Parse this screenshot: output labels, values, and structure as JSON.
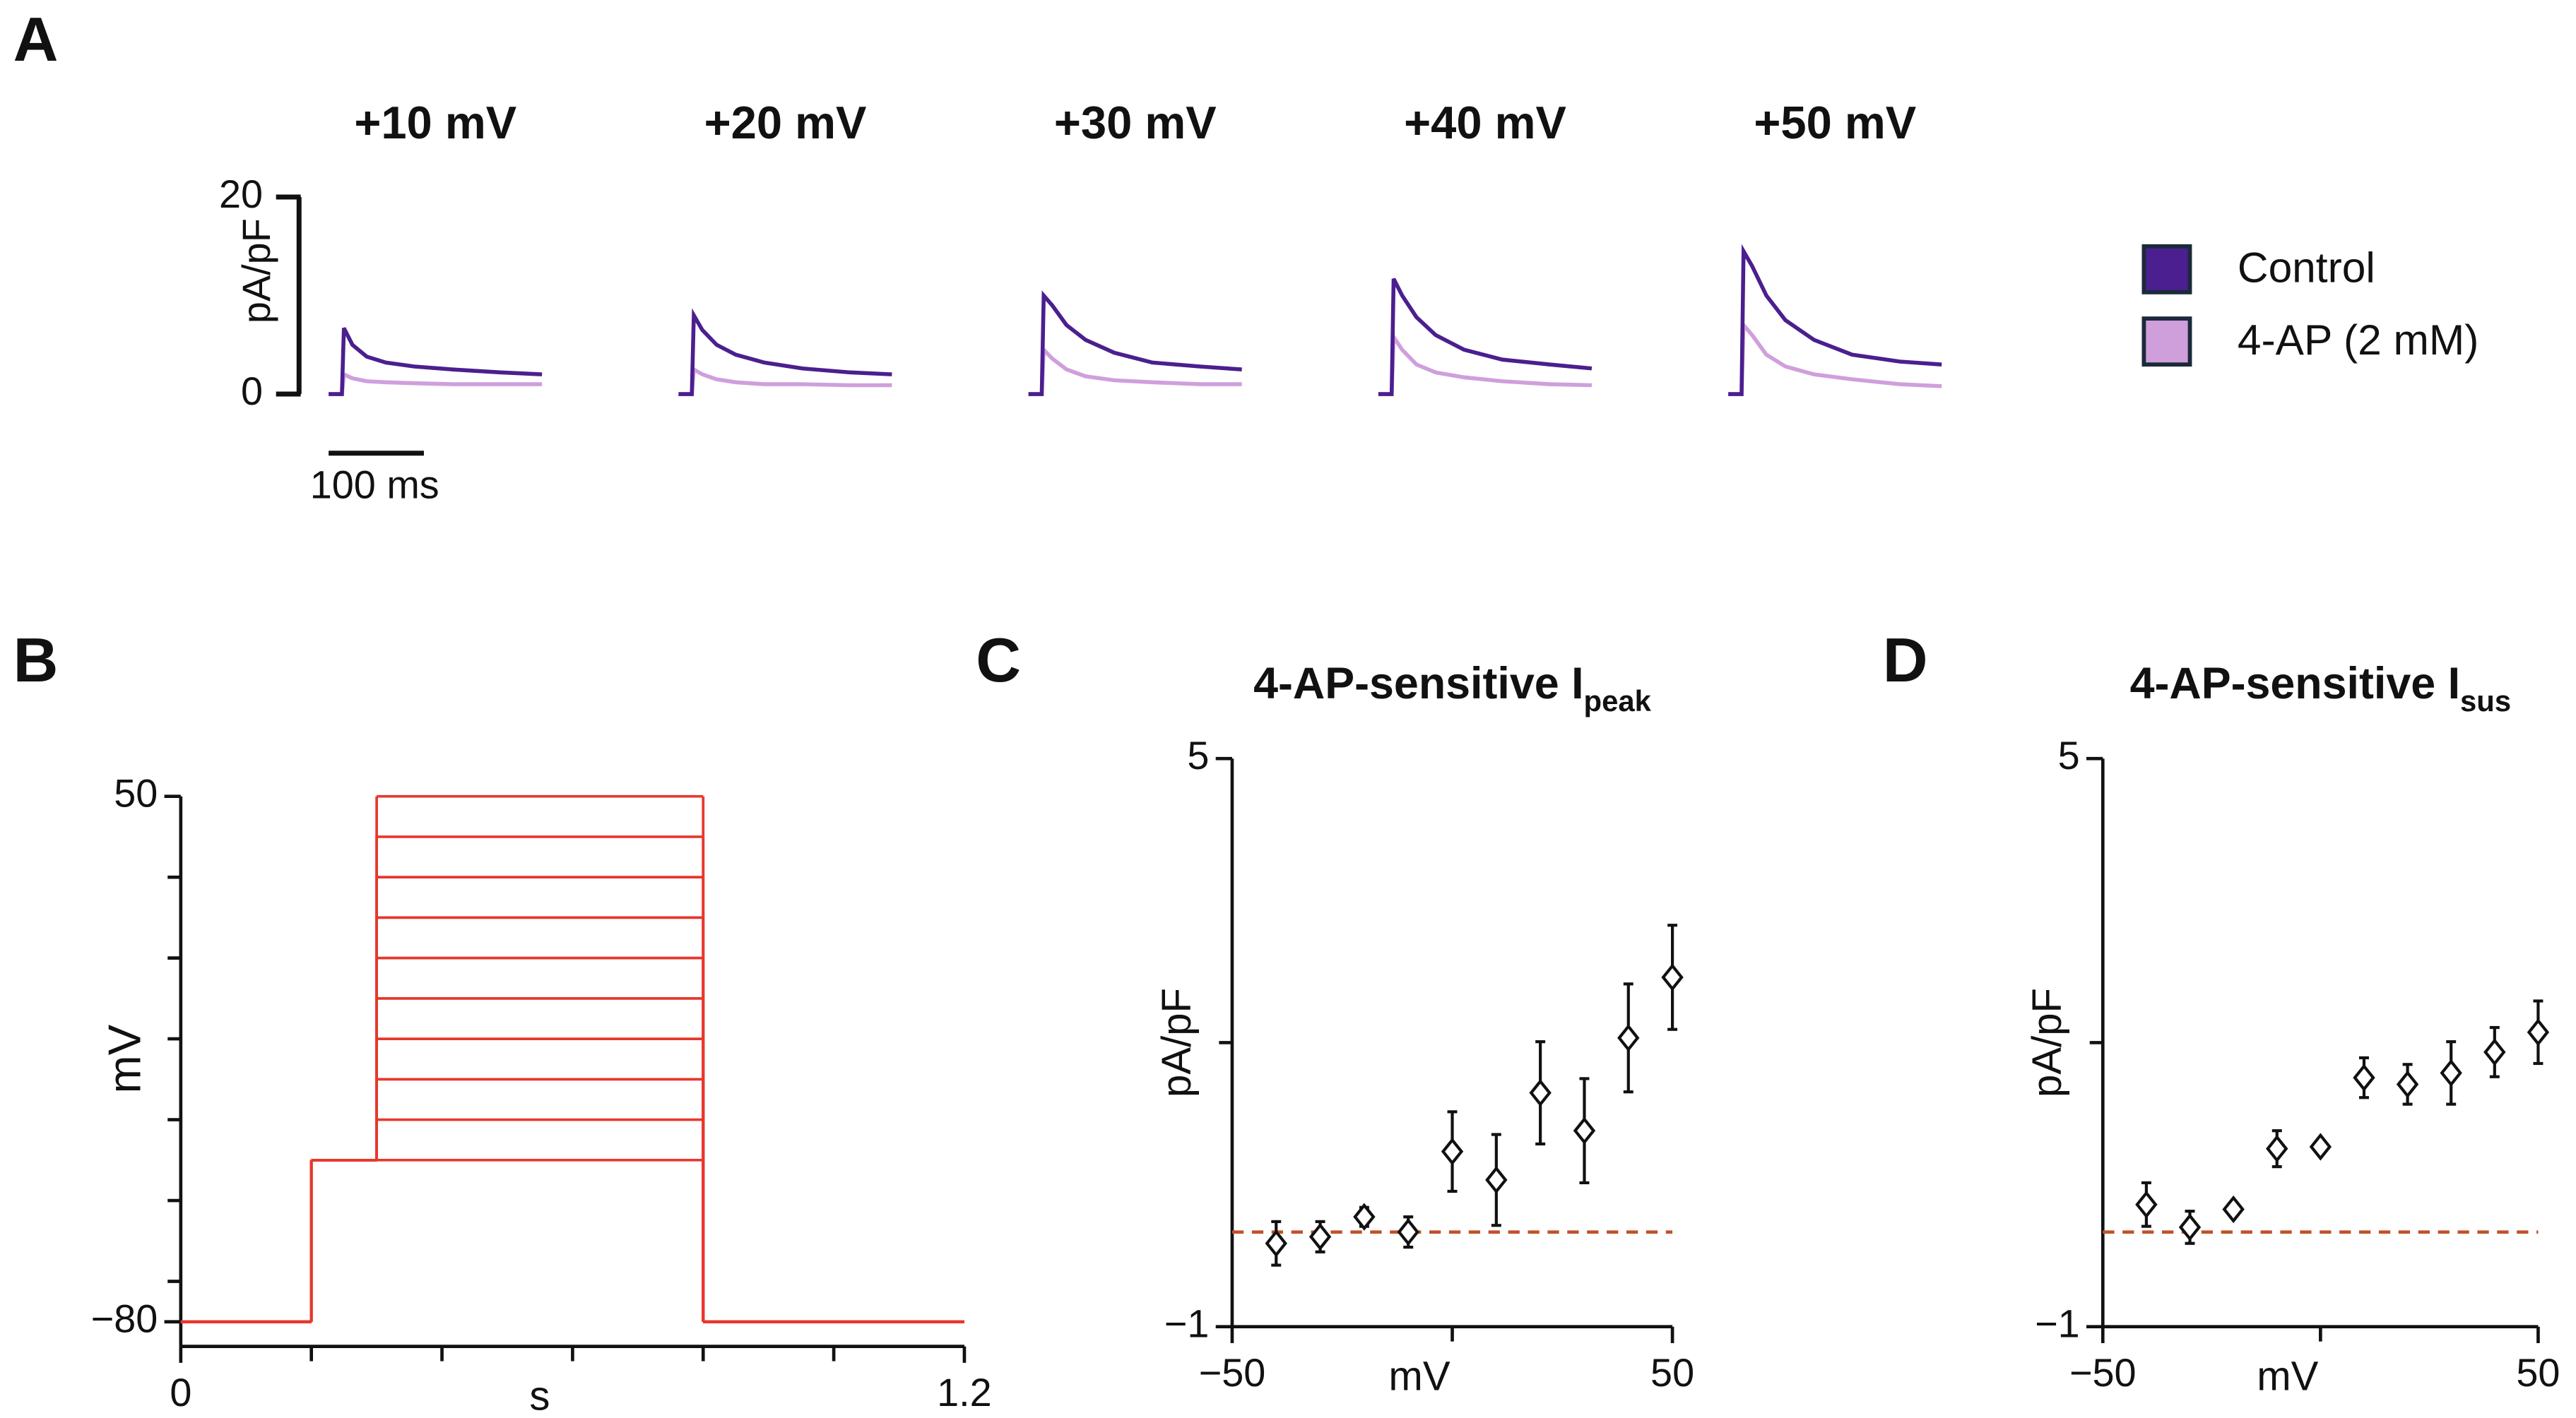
{
  "chart_data": [
    {
      "panel": "A",
      "type": "traces",
      "ylabel": "pA/pF",
      "ylim": [
        0,
        20
      ],
      "yticks": [
        0,
        20
      ],
      "scalebar": {
        "value": 100,
        "label": "100 ms"
      },
      "legend": [
        {
          "name": "Control",
          "color": "#4b1f8f"
        },
        {
          "name": "4-AP (2 mM)",
          "color": "#cf9fdc"
        }
      ],
      "x": [
        0,
        14,
        16,
        25,
        40,
        60,
        90,
        130,
        180,
        224
      ],
      "groups": [
        {
          "title": "+10 mV",
          "values": [
            [
              0,
              0,
              6.7,
              5,
              3.8,
              3.2,
              2.8,
              2.5,
              2.2,
              2
            ],
            [
              0,
              0,
              2,
              1.6,
              1.3,
              1.2,
              1.1,
              1,
              1,
              1
            ]
          ]
        },
        {
          "title": "+20 mV",
          "values": [
            [
              0,
              0,
              8,
              6.5,
              5,
              4,
              3.2,
              2.6,
              2.2,
              2
            ],
            [
              0,
              0,
              2.5,
              2,
              1.5,
              1.2,
              1,
              1,
              0.9,
              0.9
            ]
          ]
        },
        {
          "title": "+30 mV",
          "values": [
            [
              0,
              0,
              10,
              9,
              7,
              5.5,
              4.2,
              3.2,
              2.8,
              2.5
            ],
            [
              0,
              0,
              4.5,
              3.6,
              2.5,
              1.8,
              1.4,
              1.2,
              1,
              1
            ]
          ]
        },
        {
          "title": "+40 mV",
          "values": [
            [
              0,
              0,
              11.7,
              10,
              7.8,
              6,
              4.5,
              3.5,
              3,
              2.6
            ],
            [
              0,
              0,
              5.8,
              4.5,
              3,
              2.2,
              1.7,
              1.3,
              1,
              0.9
            ]
          ]
        },
        {
          "title": "+50 mV",
          "values": [
            [
              0,
              0,
              14.5,
              13,
              10,
              7.5,
              5.5,
              4,
              3.3,
              3
            ],
            [
              0,
              0,
              7,
              6,
              4,
              2.8,
              2,
              1.5,
              1,
              0.8
            ]
          ]
        }
      ]
    },
    {
      "panel": "B",
      "type": "step",
      "xlabel": "s",
      "ylabel": "mV",
      "xlim": [
        0,
        1.2
      ],
      "ylim": [
        -80,
        50
      ],
      "xticks": [
        0,
        1.2
      ],
      "xminor": [
        0.2,
        0.4,
        0.6,
        0.8,
        1
      ],
      "yticks": [
        50,
        {
          "value": -80,
          "label": "−80"
        }
      ],
      "yminor": [
        30,
        10,
        -10,
        -30,
        -50,
        -70
      ],
      "color": "#e8372c",
      "edges": [
        0,
        0.2,
        0.3,
        0.8,
        1.2
      ],
      "series": [
        {
          "values": [
            -80,
            -40,
            -40,
            -80
          ]
        },
        {
          "values": [
            -80,
            -40,
            -30,
            -80
          ]
        },
        {
          "values": [
            -80,
            -40,
            -20,
            -80
          ]
        },
        {
          "values": [
            -80,
            -40,
            -10,
            -80
          ]
        },
        {
          "values": [
            -80,
            -40,
            0,
            -80
          ]
        },
        {
          "values": [
            -80,
            -40,
            10,
            -80
          ]
        },
        {
          "values": [
            -80,
            -40,
            20,
            -80
          ]
        },
        {
          "values": [
            -80,
            -40,
            30,
            -80
          ]
        },
        {
          "values": [
            -80,
            -40,
            40,
            -80
          ]
        },
        {
          "values": [
            -80,
            -40,
            50,
            -80
          ]
        }
      ]
    },
    {
      "panel": "C",
      "type": "scatter",
      "title": "4-AP-sensitive I",
      "title_sub": "peak",
      "xlabel": "mV",
      "ylabel": "pA/pF",
      "xlim": [
        -50,
        50
      ],
      "ylim": [
        -1,
        5
      ],
      "xticks": [
        {
          "value": -50,
          "label": "−50"
        },
        50
      ],
      "xminor": [
        0
      ],
      "yticks": [
        5,
        {
          "value": -1,
          "label": "−1"
        }
      ],
      "yminor": [
        2
      ],
      "x": [
        -40,
        -30,
        -20,
        -10,
        0,
        10,
        20,
        30,
        40,
        50
      ],
      "values": [
        -0.12,
        -0.05,
        0.16,
        0,
        0.85,
        0.55,
        1.47,
        1.07,
        2.05,
        2.69
      ],
      "errors": [
        0.23,
        0.16,
        0.1,
        0.16,
        0.42,
        0.48,
        0.54,
        0.55,
        0.57,
        0.55
      ],
      "reference_line": 0,
      "reference_color": "#c0522a"
    },
    {
      "panel": "D",
      "type": "scatter",
      "title": "4-AP-sensitive I",
      "title_sub": "sus",
      "xlabel": "mV",
      "ylabel": "pA/pF",
      "xlim": [
        -50,
        50
      ],
      "ylim": [
        -1,
        5
      ],
      "xticks": [
        {
          "value": -50,
          "label": "−50"
        },
        50
      ],
      "xminor": [
        0
      ],
      "yticks": [
        5,
        {
          "value": -1,
          "label": "−1"
        }
      ],
      "yminor": [
        2
      ],
      "x": [
        -40,
        -30,
        -20,
        -10,
        0,
        10,
        20,
        30,
        40,
        50
      ],
      "values": [
        0.29,
        0.05,
        0.24,
        0.88,
        0.9,
        1.63,
        1.56,
        1.68,
        1.9,
        2.11
      ],
      "errors": [
        0.23,
        0.17,
        0.05,
        0.19,
        0.05,
        0.21,
        0.21,
        0.33,
        0.26,
        0.33
      ],
      "reference_line": 0,
      "reference_color": "#c0522a"
    }
  ]
}
